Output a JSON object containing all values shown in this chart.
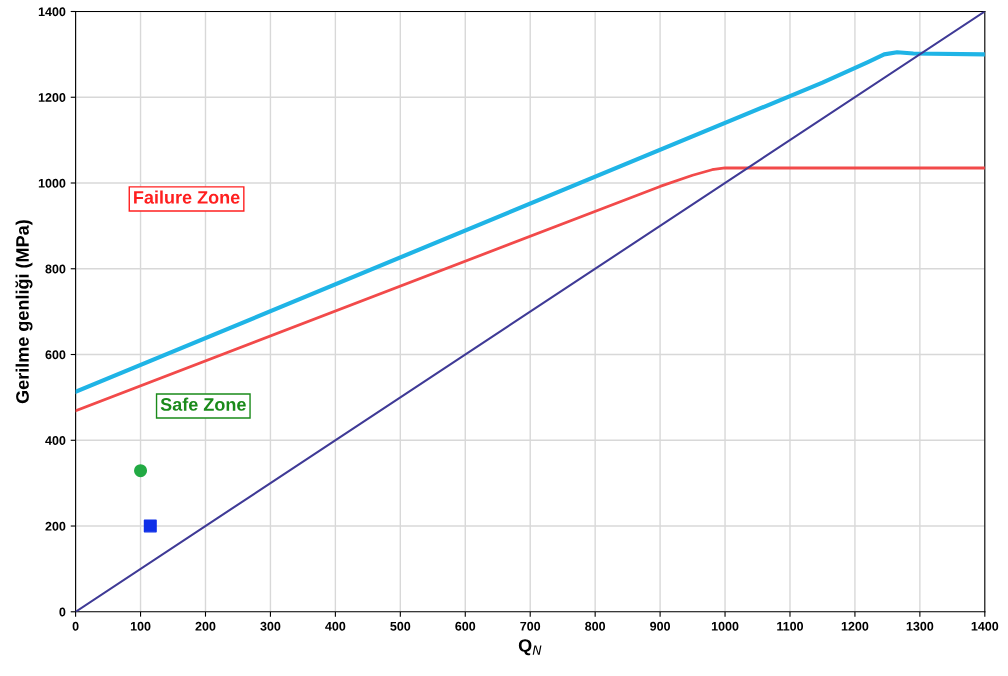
{
  "chart_data": {
    "type": "line",
    "xlabel": "Q$_{N}$",
    "ylabel": "Gerilme genliği (MPa)",
    "xlim": [
      0,
      1400
    ],
    "ylim": [
      0,
      1400
    ],
    "xticks": [
      0,
      100,
      200,
      300,
      400,
      500,
      600,
      700,
      800,
      900,
      1000,
      1100,
      1200,
      1300,
      1400
    ],
    "yticks": [
      0,
      200,
      400,
      600,
      800,
      1000,
      1200,
      1400
    ],
    "grid": true,
    "legend": false,
    "annotations": [
      "Failure Zone",
      "Safe Zone"
    ],
    "series": [
      {
        "color": "#1fb4e6",
        "x": [
          0,
          1150,
          1220,
          1245,
          1265,
          1290,
          1400
        ],
        "values": [
          513,
          1234,
          1282,
          1300,
          1305,
          1302,
          1300
        ]
      },
      {
        "color": "#f24a4a",
        "x": [
          0,
          900,
          950,
          980,
          1000,
          1020,
          1400
        ],
        "values": [
          469,
          992,
          1018,
          1031,
          1035,
          1035,
          1035
        ]
      },
      {
        "color": "#3f3a96",
        "x": [
          0,
          1400
        ],
        "values": [
          0,
          1400
        ]
      },
      {
        "type": "scatter",
        "color": "#22aa44",
        "marker": "circle",
        "x": [
          100
        ],
        "values": [
          329
        ]
      },
      {
        "type": "scatter",
        "color": "#1030e8",
        "marker": "square",
        "x": [
          115
        ],
        "values": [
          200
        ]
      }
    ]
  }
}
